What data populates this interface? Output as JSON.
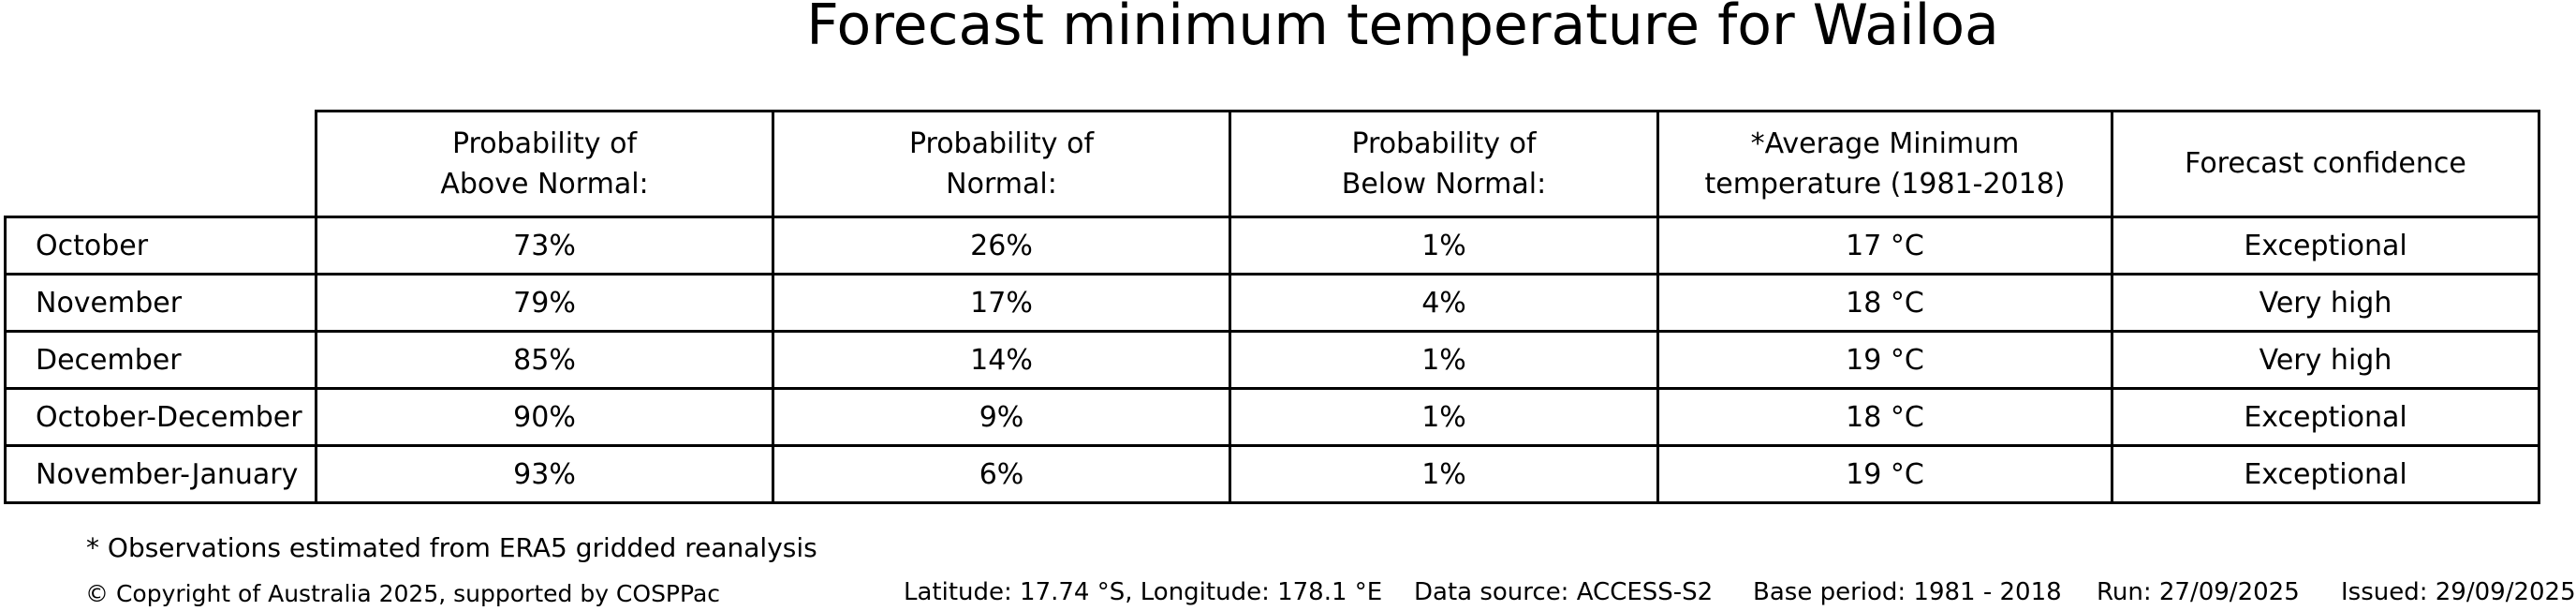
{
  "title": "Forecast minimum temperature for Wailoa",
  "table": {
    "headers": [
      "Probability of\nAbove Normal:",
      "Probability of\nNormal:",
      "Probability of\nBelow Normal:",
      "*Average Minimum\ntemperature (1981-2018)",
      "Forecast confidence"
    ],
    "rows": [
      {
        "period": "October",
        "above": "73%",
        "normal": "26%",
        "below": "1%",
        "avg_min": "17 °C",
        "confidence": "Exceptional"
      },
      {
        "period": "November",
        "above": "79%",
        "normal": "17%",
        "below": "4%",
        "avg_min": "18 °C",
        "confidence": "Very high"
      },
      {
        "period": "December",
        "above": "85%",
        "normal": "14%",
        "below": "1%",
        "avg_min": "19 °C",
        "confidence": "Very high"
      },
      {
        "period": "October-December",
        "above": "90%",
        "normal": "9%",
        "below": "1%",
        "avg_min": "18 °C",
        "confidence": "Exceptional"
      },
      {
        "period": "November-January",
        "above": "93%",
        "normal": "6%",
        "below": "1%",
        "avg_min": "19 °C",
        "confidence": "Exceptional"
      }
    ]
  },
  "footnote": "* Observations estimated from ERA5 gridded reanalysis",
  "footer": {
    "copyright": "© Copyright of Australia 2025, supported by COSPPac",
    "location": "Latitude: 17.74 °S, Longitude: 178.1 °E",
    "data_source": "Data source: ACCESS-S2",
    "base_period": "Base period: 1981 - 2018",
    "run": "Run: 27/09/2025",
    "issued": "Issued: 29/09/2025"
  },
  "colors": {
    "text": "#000000",
    "background": "#ffffff",
    "border": "#000000"
  },
  "chart_data": {
    "type": "table",
    "title": "Forecast minimum temperature for Wailoa",
    "columns": [
      "",
      "Probability of Above Normal:",
      "Probability of Normal:",
      "Probability of Below Normal:",
      "*Average Minimum temperature (1981-2018)",
      "Forecast confidence"
    ],
    "rows": [
      [
        "October",
        "73%",
        "26%",
        "1%",
        "17 °C",
        "Exceptional"
      ],
      [
        "November",
        "79%",
        "17%",
        "4%",
        "18 °C",
        "Very high"
      ],
      [
        "December",
        "85%",
        "14%",
        "1%",
        "19 °C",
        "Very high"
      ],
      [
        "October-December",
        "90%",
        "9%",
        "1%",
        "18 °C",
        "Exceptional"
      ],
      [
        "November-January",
        "93%",
        "6%",
        "1%",
        "19 °C",
        "Exceptional"
      ]
    ],
    "footnote": "* Observations estimated from ERA5 gridded reanalysis"
  }
}
